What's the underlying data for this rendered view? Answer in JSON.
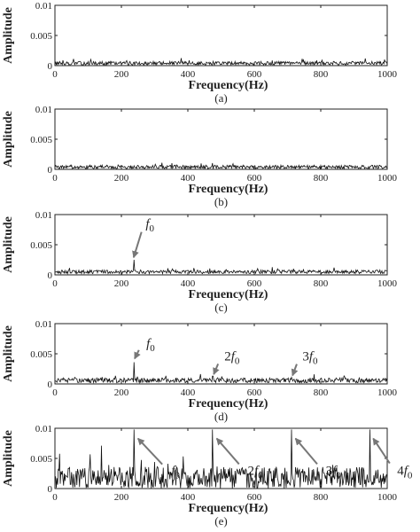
{
  "chart_data": [
    {
      "type": "line",
      "caption": "(a)",
      "xlabel": "Frequency(Hz)",
      "ylabel": "Amplitude",
      "xlim": [
        0,
        1000
      ],
      "ylim": [
        0,
        0.01
      ],
      "xticks": [
        "0",
        "200",
        "400",
        "600",
        "800",
        "1000"
      ],
      "yticks": [
        "0",
        "0.005",
        "0.01"
      ],
      "noise_level": 0.0004,
      "noise_variation": 0.0003,
      "peaks": [],
      "annotations": []
    },
    {
      "type": "line",
      "caption": "(b)",
      "xlabel": "Frequency(Hz)",
      "ylabel": "Amplitude",
      "xlim": [
        0,
        1000
      ],
      "ylim": [
        0,
        0.01
      ],
      "xticks": [
        "0",
        "200",
        "400",
        "600",
        "800",
        "1000"
      ],
      "yticks": [
        "0",
        "0.005",
        "0.01"
      ],
      "noise_level": 0.0004,
      "noise_variation": 0.0003,
      "peaks": [],
      "annotations": []
    },
    {
      "type": "line",
      "caption": "(c)",
      "xlabel": "Frequency(Hz)",
      "ylabel": "Amplitude",
      "xlim": [
        0,
        1000
      ],
      "ylim": [
        0,
        0.01
      ],
      "xticks": [
        "0",
        "200",
        "400",
        "600",
        "800",
        "1000"
      ],
      "yticks": [
        "0",
        "0.005",
        "0.01"
      ],
      "noise_level": 0.0005,
      "noise_variation": 0.0003,
      "peaks": [
        {
          "x": 237,
          "y": 0.0025
        }
      ],
      "annotations": [
        {
          "base": "f",
          "sub": "0",
          "tip_x": 237,
          "tip_y": 0.0029,
          "text_x": 273,
          "text_y": 0.0085
        }
      ]
    },
    {
      "type": "line",
      "caption": "(d)",
      "xlabel": "Frequency(Hz)",
      "ylabel": "Amplitude",
      "xlim": [
        0,
        1000
      ],
      "ylim": [
        0,
        0.01
      ],
      "xticks": [
        "0",
        "200",
        "400",
        "600",
        "800",
        "1000"
      ],
      "yticks": [
        "0",
        "0.005",
        "0.01"
      ],
      "noise_level": 0.0006,
      "noise_variation": 0.0004,
      "peaks": [
        {
          "x": 237,
          "y": 0.0036
        },
        {
          "x": 474,
          "y": 0.0013
        },
        {
          "x": 711,
          "y": 0.0011
        }
      ],
      "annotations": [
        {
          "base": "f",
          "sub": "0",
          "tip_x": 240,
          "tip_y": 0.0042,
          "text_x": 275,
          "text_y": 0.0068
        },
        {
          "base": "2f",
          "sub": "0",
          "tip_x": 478,
          "tip_y": 0.0016,
          "text_x": 510,
          "text_y": 0.0046
        },
        {
          "base": "3f",
          "sub": "0",
          "tip_x": 715,
          "tip_y": 0.0014,
          "text_x": 745,
          "text_y": 0.0046
        }
      ]
    },
    {
      "type": "line",
      "caption": "(e)",
      "xlabel": "Frequency(Hz)",
      "ylabel": "Amplitude",
      "xlim": [
        0,
        1000
      ],
      "ylim": [
        0,
        0.01
      ],
      "xticks": [
        "0",
        "200",
        "400",
        "600",
        "800",
        "1000"
      ],
      "yticks": [
        "0",
        "0.005",
        "0.01"
      ],
      "noise_level": 0.0018,
      "noise_variation": 0.0018,
      "peaks": [
        {
          "x": 237,
          "y": 0.0098
        },
        {
          "x": 474,
          "y": 0.0098
        },
        {
          "x": 711,
          "y": 0.0098
        },
        {
          "x": 948,
          "y": 0.0098
        }
      ],
      "annotations": [
        {
          "base": "f",
          "sub": "0",
          "tip_x": 250,
          "tip_y": 0.0083,
          "text_x": 350,
          "text_y": 0.003
        },
        {
          "base": "2f",
          "sub": "0",
          "tip_x": 487,
          "tip_y": 0.0083,
          "text_x": 580,
          "text_y": 0.003
        },
        {
          "base": "3f",
          "sub": "0",
          "tip_x": 724,
          "tip_y": 0.0083,
          "text_x": 815,
          "text_y": 0.003
        },
        {
          "base": "4f",
          "sub": "0",
          "tip_x": 958,
          "tip_y": 0.0083,
          "text_x": 1030,
          "text_y": 0.003
        }
      ]
    }
  ]
}
